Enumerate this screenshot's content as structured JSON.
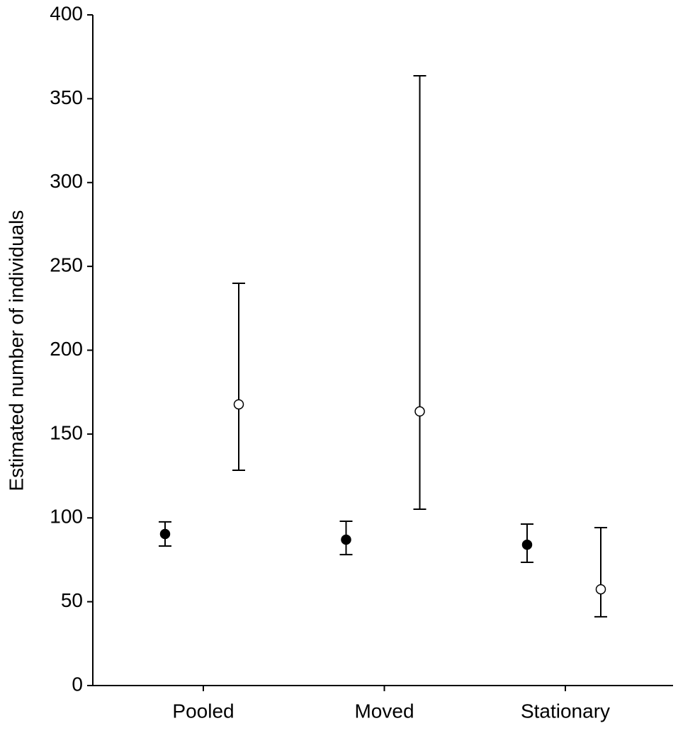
{
  "chart_data": {
    "type": "errorbar",
    "y_label": "Estimated number of individuals",
    "categories": [
      "Pooled",
      "Moved",
      "Stationary"
    ],
    "series": [
      {
        "color": "#000000",
        "values": [
          90.4,
          87,
          84
        ],
        "lower": [
          83.2,
          78.1,
          73.5
        ],
        "upper": [
          97.6,
          98,
          96.3
        ]
      },
      {
        "color": "#ffffff",
        "values": [
          167.7,
          163.5,
          57.4
        ],
        "lower": [
          128.4,
          105.2,
          41
        ],
        "upper": [
          239.9,
          363.7,
          94.2
        ]
      }
    ],
    "ylim": [
      0,
      400
    ],
    "yticks": [
      0,
      50,
      100,
      150,
      200,
      250,
      300,
      350,
      400
    ],
    "grid": false
  }
}
